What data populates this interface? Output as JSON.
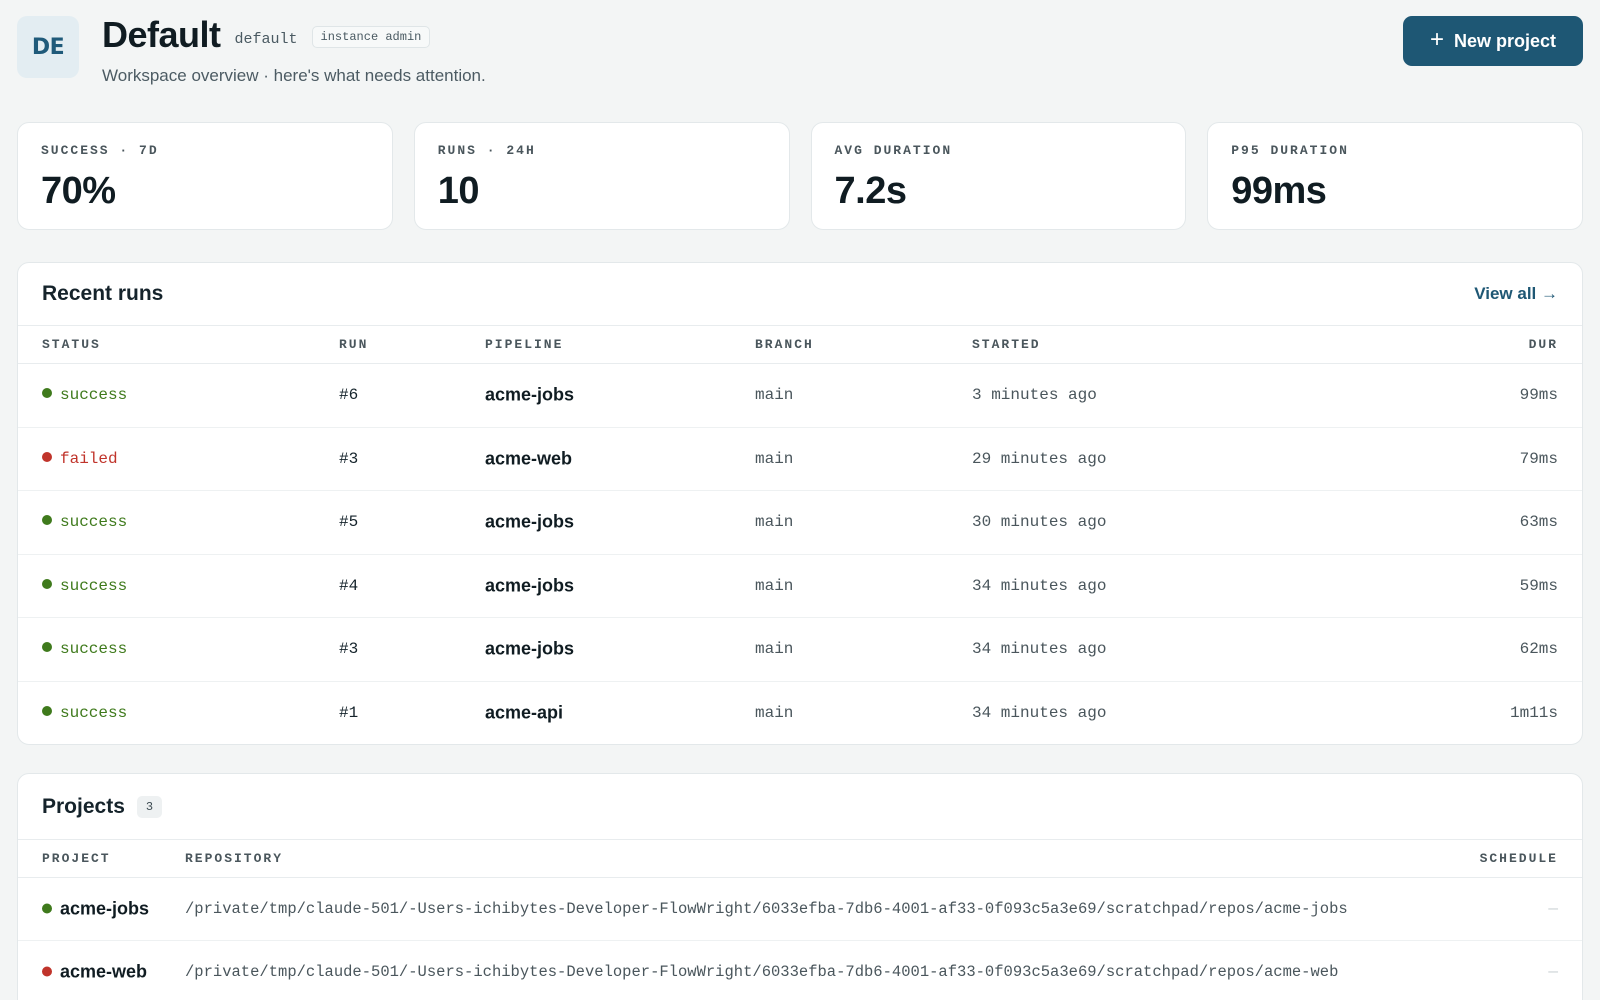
{
  "header": {
    "avatar_initials": "DE",
    "title": "Default",
    "slug": "default",
    "role_badge": "instance admin",
    "subtitle": "Workspace overview · here's what needs attention.",
    "new_project_label": "New project",
    "new_project_icon": "plus-icon"
  },
  "stats": [
    {
      "label": "SUCCESS · 7D",
      "value": "70%"
    },
    {
      "label": "RUNS · 24H",
      "value": "10"
    },
    {
      "label": "AVG DURATION",
      "value": "7.2s"
    },
    {
      "label": "P95 DURATION",
      "value": "99ms"
    }
  ],
  "recent_runs": {
    "title": "Recent runs",
    "view_all": "View all →",
    "columns": {
      "status": "STATUS",
      "run": "RUN",
      "pipeline": "PIPELINE",
      "branch": "BRANCH",
      "started": "STARTED",
      "duration": "DUR"
    },
    "rows": [
      {
        "status": "success",
        "run": "#6",
        "pipeline": "acme-jobs",
        "branch": "main",
        "started": "3 minutes ago",
        "duration": "99ms"
      },
      {
        "status": "failed",
        "run": "#3",
        "pipeline": "acme-web",
        "branch": "main",
        "started": "29 minutes ago",
        "duration": "79ms"
      },
      {
        "status": "success",
        "run": "#5",
        "pipeline": "acme-jobs",
        "branch": "main",
        "started": "30 minutes ago",
        "duration": "63ms"
      },
      {
        "status": "success",
        "run": "#4",
        "pipeline": "acme-jobs",
        "branch": "main",
        "started": "34 minutes ago",
        "duration": "59ms"
      },
      {
        "status": "success",
        "run": "#3",
        "pipeline": "acme-jobs",
        "branch": "main",
        "started": "34 minutes ago",
        "duration": "62ms"
      },
      {
        "status": "success",
        "run": "#1",
        "pipeline": "acme-api",
        "branch": "main",
        "started": "34 minutes ago",
        "duration": "1m11s"
      }
    ]
  },
  "projects": {
    "title": "Projects",
    "count": "3",
    "columns": {
      "project": "PROJECT",
      "repository": "REPOSITORY",
      "schedule": "SCHEDULE"
    },
    "rows": [
      {
        "status": "success",
        "name": "acme-jobs",
        "repository": "/private/tmp/claude-501/-Users-ichibytes-Developer-FlowWright/6033efba-7db6-4001-af33-0f093c5a3e69/scratchpad/repos/acme-jobs",
        "schedule": "—"
      },
      {
        "status": "failed",
        "name": "acme-web",
        "repository": "/private/tmp/claude-501/-Users-ichibytes-Developer-FlowWright/6033efba-7db6-4001-af33-0f093c5a3e69/scratchpad/repos/acme-web",
        "schedule": "—"
      }
    ]
  },
  "colors": {
    "accent": "#1e5774",
    "success": "#3f7a1c",
    "failed": "#c0342b",
    "background": "#f3f5f5"
  }
}
